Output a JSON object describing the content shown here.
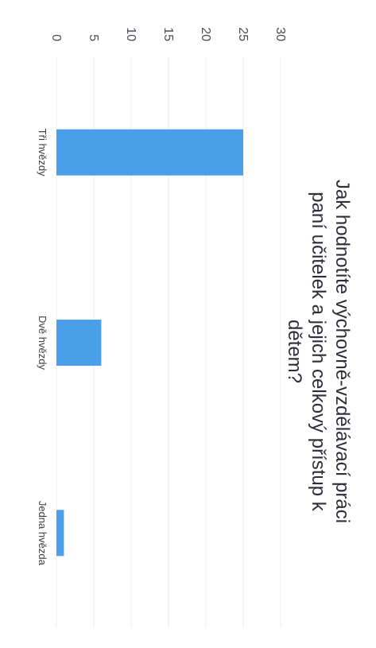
{
  "chart_data": {
    "type": "bar",
    "title_lines": [
      "Jak hodnotíte výchovně-vzdělávací práci",
      "paní učitelek a jejich celkový přístup k",
      "dětem?"
    ],
    "categories": [
      "Tři hvězdy",
      "Dvě hvězdy",
      "Jedna hvězda"
    ],
    "values": [
      25,
      6,
      1
    ],
    "yticks": [
      0,
      5,
      10,
      15,
      20,
      25,
      30
    ],
    "ylim": [
      0,
      30
    ],
    "grid": true,
    "bar_color": "#4a9fe8",
    "grid_color": "#eceef2"
  }
}
